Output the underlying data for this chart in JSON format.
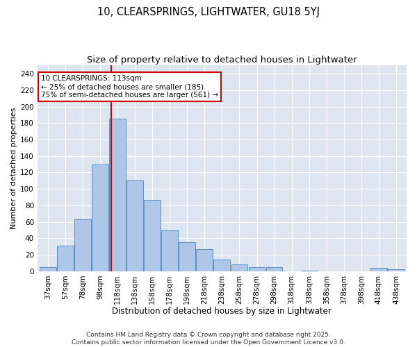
{
  "title1": "10, CLEARSPRINGS, LIGHTWATER, GU18 5YJ",
  "title2": "Size of property relative to detached houses in Lightwater",
  "xlabel": "Distribution of detached houses by size in Lightwater",
  "ylabel": "Number of detached properties",
  "bin_labels": [
    "37sqm",
    "57sqm",
    "78sqm",
    "98sqm",
    "118sqm",
    "138sqm",
    "158sqm",
    "178sqm",
    "198sqm",
    "218sqm",
    "238sqm",
    "258sqm",
    "278sqm",
    "298sqm",
    "318sqm",
    "338sqm",
    "358sqm",
    "378sqm",
    "398sqm",
    "418sqm",
    "438sqm"
  ],
  "bin_centers": [
    0,
    1,
    2,
    3,
    4,
    5,
    6,
    7,
    8,
    9,
    10,
    11,
    12,
    13,
    14,
    15,
    16,
    17,
    18,
    19,
    20
  ],
  "values": [
    5,
    31,
    63,
    130,
    185,
    110,
    87,
    50,
    35,
    27,
    14,
    8,
    5,
    5,
    0,
    1,
    0,
    0,
    0,
    4,
    2
  ],
  "bar_color": "#aec6e8",
  "bar_edge_color": "#5a8fc0",
  "ref_line_bin": 3.65,
  "annotation_line1": "10 CLEARSPRINGS: 113sqm",
  "annotation_line2": "← 25% of detached houses are smaller (185)",
  "annotation_line3": "75% of semi-detached houses are larger (561) →",
  "ref_line_color": "#cc0000",
  "box_edge_color": "#cc0000",
  "ylim": [
    0,
    250
  ],
  "yticks": [
    0,
    20,
    40,
    60,
    80,
    100,
    120,
    140,
    160,
    180,
    200,
    220,
    240
  ],
  "background_color": "#dde5f0",
  "grid_color": "#ffffff",
  "footer_line1": "Contains HM Land Registry data © Crown copyright and database right 2025.",
  "footer_line2": "Contains public sector information licensed under the Open Government Licence v3.0.",
  "title1_fontsize": 10.5,
  "title2_fontsize": 9.5,
  "xlabel_fontsize": 8.5,
  "ylabel_fontsize": 8,
  "tick_fontsize": 7.5,
  "annot_fontsize": 7.5,
  "footer_fontsize": 6.5
}
